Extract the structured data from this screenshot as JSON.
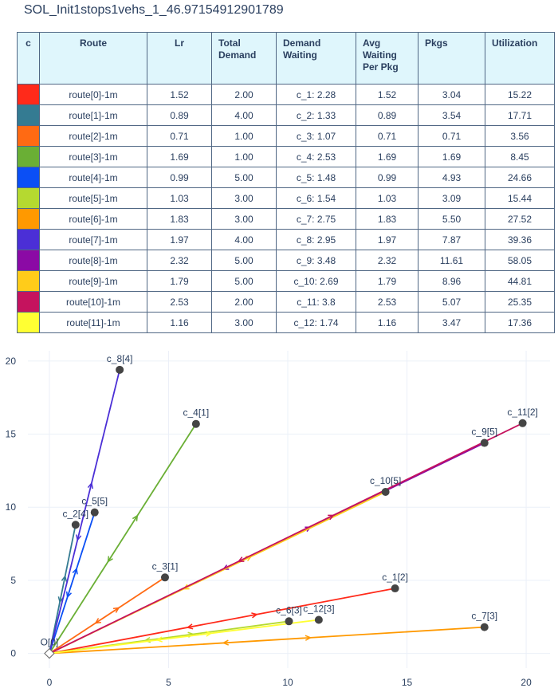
{
  "title": "SOL_Init1stops1vehs_1_46.97154912901789",
  "table": {
    "header": [
      "c",
      "Route",
      "Lr",
      "Total Demand",
      "Demand Waiting",
      "Avg Waiting Per Pkg",
      "Pkgs",
      "Utilization"
    ],
    "colors": [
      "#ff2a1a",
      "#347b92",
      "#ff6a13",
      "#6aaf35",
      "#0b4ff5",
      "#b5d930",
      "#ff9900",
      "#4b2fd6",
      "#8b0aa5",
      "#ffcc1a",
      "#c5135e",
      "#ffff33"
    ],
    "rows": [
      [
        "route[0]-1m",
        "1.52",
        "2.00",
        "c_1: 2.28",
        "1.52",
        "3.04",
        "15.22"
      ],
      [
        "route[1]-1m",
        "0.89",
        "4.00",
        "c_2: 1.33",
        "0.89",
        "3.54",
        "17.71"
      ],
      [
        "route[2]-1m",
        "0.71",
        "1.00",
        "c_3: 1.07",
        "0.71",
        "0.71",
        "3.56"
      ],
      [
        "route[3]-1m",
        "1.69",
        "1.00",
        "c_4: 2.53",
        "1.69",
        "1.69",
        "8.45"
      ],
      [
        "route[4]-1m",
        "0.99",
        "5.00",
        "c_5: 1.48",
        "0.99",
        "4.93",
        "24.66"
      ],
      [
        "route[5]-1m",
        "1.03",
        "3.00",
        "c_6: 1.54",
        "1.03",
        "3.09",
        "15.44"
      ],
      [
        "route[6]-1m",
        "1.83",
        "3.00",
        "c_7: 2.75",
        "1.83",
        "5.50",
        "27.52"
      ],
      [
        "route[7]-1m",
        "1.97",
        "4.00",
        "c_8: 2.95",
        "1.97",
        "7.87",
        "39.36"
      ],
      [
        "route[8]-1m",
        "2.32",
        "5.00",
        "c_9: 3.48",
        "2.32",
        "11.61",
        "58.05"
      ],
      [
        "route[9]-1m",
        "1.79",
        "5.00",
        "c_10: 2.69",
        "1.79",
        "8.96",
        "44.81"
      ],
      [
        "route[10]-1m",
        "2.53",
        "2.00",
        "c_11: 3.8",
        "2.53",
        "5.07",
        "25.35"
      ],
      [
        "route[11]-1m",
        "1.16",
        "3.00",
        "c_12: 1.74",
        "1.16",
        "3.47",
        "17.36"
      ]
    ]
  },
  "chart_data": {
    "type": "route-map",
    "xlim": [
      -0.9,
      21
    ],
    "ylim": [
      -1,
      20.7
    ],
    "xticks": [
      0,
      5,
      10,
      15,
      20
    ],
    "yticks": [
      0,
      5,
      10,
      15,
      20
    ],
    "points": {
      "labels": [
        "O[0]",
        "c_1[2]",
        "c_2[4]",
        "c_3[1]",
        "c_4[1]",
        "c_5[5]",
        "c_6[3]",
        "c_7[3]",
        "c_8[4]",
        "c_9[5]",
        "c_10[5]",
        "c_11[2]",
        "c_12[3]"
      ],
      "x": [
        0,
        14.5,
        1.1,
        4.85,
        6.15,
        1.9,
        10.05,
        18.25,
        2.95,
        18.25,
        14.1,
        19.85,
        11.3
      ],
      "y": [
        0,
        4.45,
        8.8,
        5.2,
        15.7,
        9.65,
        2.2,
        1.8,
        19.4,
        14.4,
        11.05,
        15.75,
        2.3
      ]
    },
    "routes": [
      {
        "color": "#ff2a1a",
        "x": [
          0,
          14.5,
          0
        ],
        "y": [
          0,
          4.45,
          0
        ]
      },
      {
        "color": "#347b92",
        "x": [
          0,
          1.1,
          0
        ],
        "y": [
          0,
          8.8,
          0
        ]
      },
      {
        "color": "#ff6a13",
        "x": [
          0,
          4.85,
          0
        ],
        "y": [
          0,
          5.2,
          0
        ]
      },
      {
        "color": "#6aaf35",
        "x": [
          0,
          6.15,
          0
        ],
        "y": [
          0,
          15.7,
          0
        ]
      },
      {
        "color": "#0b4ff5",
        "x": [
          0,
          1.9,
          0
        ],
        "y": [
          0,
          9.65,
          0
        ]
      },
      {
        "color": "#b5d930",
        "x": [
          0,
          10.05,
          0
        ],
        "y": [
          0,
          2.2,
          0
        ]
      },
      {
        "color": "#ff9900",
        "x": [
          0,
          18.25,
          0
        ],
        "y": [
          0,
          1.8,
          0
        ]
      },
      {
        "color": "#4b2fd6",
        "x": [
          0,
          2.95,
          0
        ],
        "y": [
          0,
          19.4,
          0
        ]
      },
      {
        "color": "#8b0aa5",
        "x": [
          0,
          18.25,
          0
        ],
        "y": [
          0,
          14.4,
          0
        ]
      },
      {
        "color": "#ffcc1a",
        "x": [
          0,
          14.1,
          0
        ],
        "y": [
          0,
          11.05,
          0
        ]
      },
      {
        "color": "#c5135e",
        "x": [
          0,
          19.85,
          0
        ],
        "y": [
          0,
          15.75,
          0
        ]
      },
      {
        "color": "#ffff33",
        "x": [
          0,
          11.3,
          0
        ],
        "y": [
          0,
          2.3,
          0
        ]
      }
    ]
  }
}
